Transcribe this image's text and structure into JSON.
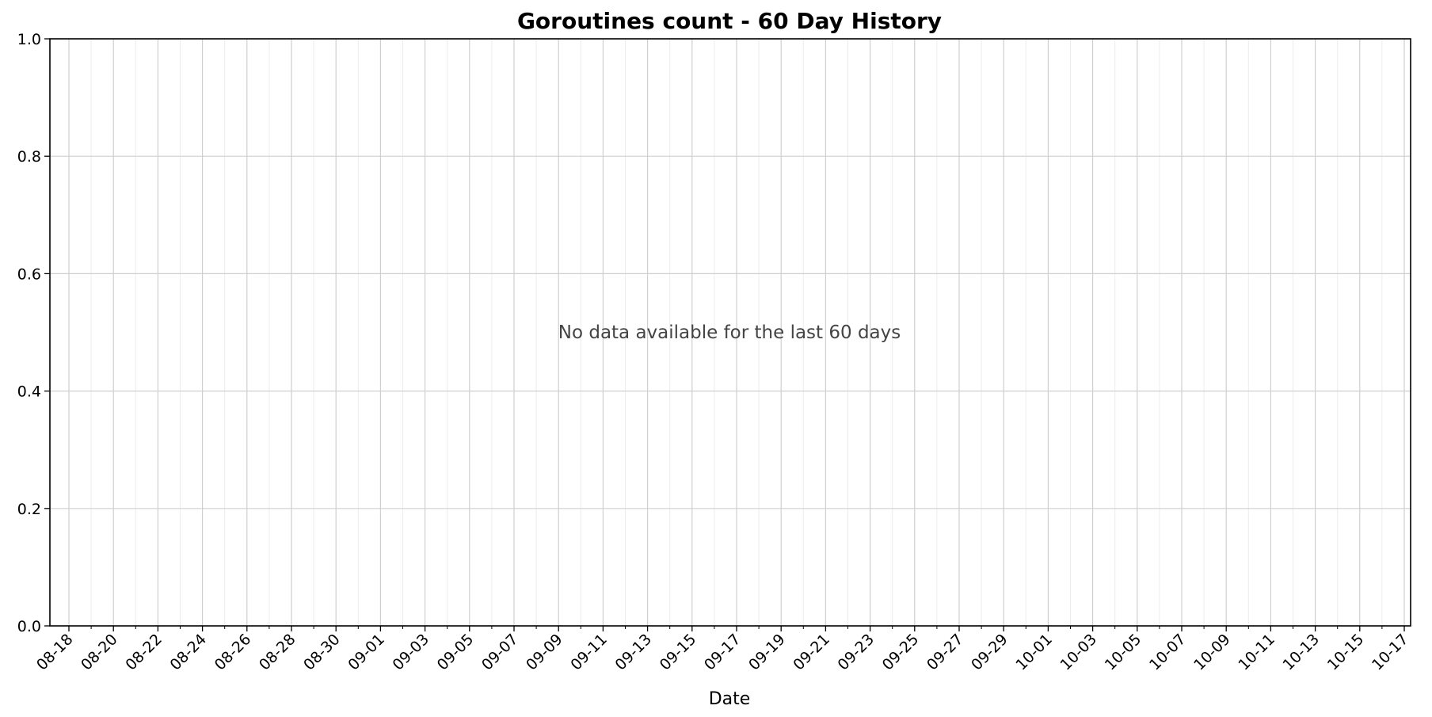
{
  "chart_data": {
    "type": "line",
    "title": "Goroutines count - 60 Day History",
    "xlabel": "Date",
    "ylabel": "",
    "ylim": [
      0,
      1
    ],
    "y_ticks": [
      "0.0",
      "0.2",
      "0.4",
      "0.6",
      "0.8",
      "1.0"
    ],
    "x_ticks": [
      "08-18",
      "08-20",
      "08-22",
      "08-24",
      "08-26",
      "08-28",
      "08-30",
      "09-01",
      "09-03",
      "09-05",
      "09-07",
      "09-09",
      "09-11",
      "09-13",
      "09-15",
      "09-17",
      "09-19",
      "09-21",
      "09-23",
      "09-25",
      "09-27",
      "09-29",
      "10-01",
      "10-03",
      "10-05",
      "10-07",
      "10-09",
      "10-11",
      "10-13",
      "10-15",
      "10-17"
    ],
    "series": [],
    "grid": true,
    "annotation": "No data available for the last 60 days"
  }
}
